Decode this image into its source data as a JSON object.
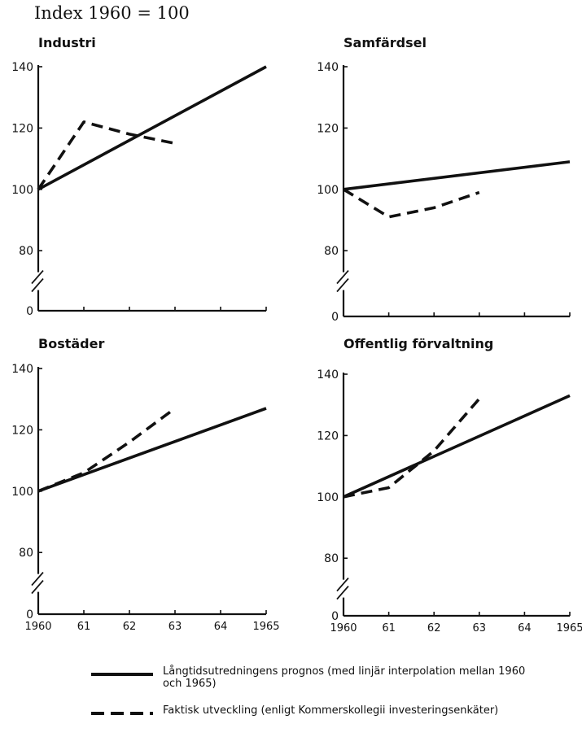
{
  "page_title": "Index 1960 = 100",
  "legend": {
    "items": [
      {
        "key": "prognos",
        "label": "Långtidsutredningens prognos (med linjär interpolation mellan 1960 och 1965)",
        "style": "solid"
      },
      {
        "key": "faktisk",
        "label": "Faktisk utveckling (enligt Kommerskollegii investeringsenkäter)",
        "style": "dashed"
      }
    ]
  },
  "colors": {
    "line": "#111111",
    "background": "#ffffff"
  },
  "chart_data": [
    {
      "type": "line",
      "title": "Industri",
      "x_ticks": [],
      "y_ticks": [
        140,
        120,
        100,
        80,
        0
      ],
      "axis_break": true,
      "xlim": [
        1960,
        1965
      ],
      "ylim": [
        70,
        140
      ],
      "series": [
        {
          "key": "prognos",
          "style": "solid",
          "x": [
            1960,
            1965
          ],
          "y": [
            100,
            140
          ]
        },
        {
          "key": "faktisk",
          "style": "dashed",
          "x": [
            1960,
            1961,
            1962,
            1963
          ],
          "y": [
            100,
            122,
            118,
            115
          ]
        }
      ]
    },
    {
      "type": "line",
      "title": "Samfärdsel",
      "x_ticks": [],
      "y_ticks": [
        140,
        120,
        100,
        80,
        0
      ],
      "axis_break": true,
      "xlim": [
        1960,
        1965
      ],
      "ylim": [
        70,
        140
      ],
      "series": [
        {
          "key": "prognos",
          "style": "solid",
          "x": [
            1960,
            1965
          ],
          "y": [
            100,
            109
          ]
        },
        {
          "key": "faktisk",
          "style": "dashed",
          "x": [
            1960,
            1961,
            1962,
            1963
          ],
          "y": [
            100,
            91,
            94,
            99
          ]
        }
      ]
    },
    {
      "type": "line",
      "title": "Bostäder",
      "x_ticks": [
        "1960",
        "61",
        "62",
        "63",
        "64",
        "1965"
      ],
      "y_ticks": [
        140,
        120,
        100,
        80,
        0
      ],
      "axis_break": true,
      "xlim": [
        1960,
        1965
      ],
      "ylim": [
        70,
        140
      ],
      "series": [
        {
          "key": "prognos",
          "style": "solid",
          "x": [
            1960,
            1965
          ],
          "y": [
            100,
            127
          ]
        },
        {
          "key": "faktisk",
          "style": "dashed",
          "x": [
            1960,
            1961,
            1962,
            1963
          ],
          "y": [
            100,
            106,
            116,
            127
          ]
        }
      ]
    },
    {
      "type": "line",
      "title": "Offentlig förvaltning",
      "x_ticks": [
        "1960",
        "61",
        "62",
        "63",
        "64",
        "1965"
      ],
      "y_ticks": [
        140,
        120,
        100,
        80,
        0
      ],
      "axis_break": true,
      "xlim": [
        1960,
        1965
      ],
      "ylim": [
        70,
        140
      ],
      "series": [
        {
          "key": "prognos",
          "style": "solid",
          "x": [
            1960,
            1965
          ],
          "y": [
            100,
            133
          ]
        },
        {
          "key": "faktisk",
          "style": "dashed",
          "x": [
            1960,
            1961,
            1962,
            1963
          ],
          "y": [
            100,
            103,
            115,
            132
          ]
        }
      ]
    }
  ]
}
